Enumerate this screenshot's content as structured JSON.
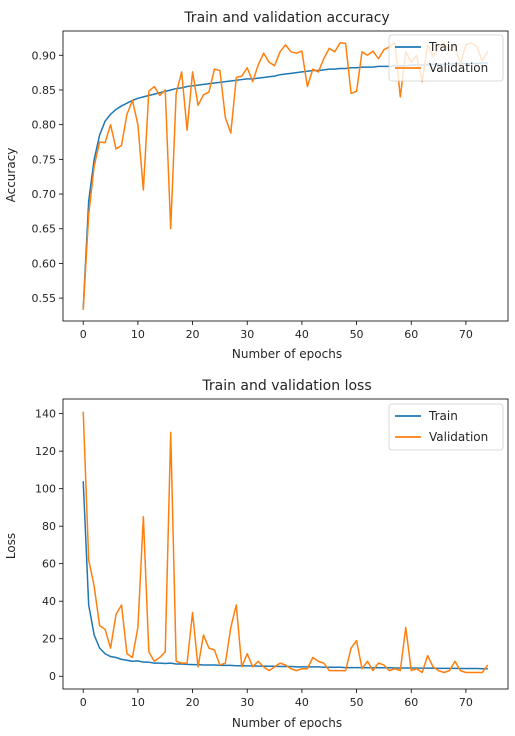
{
  "chart_data": [
    {
      "type": "line",
      "title": "Train and validation accuracy",
      "xlabel": "Number of epochs",
      "ylabel": "Accuracy",
      "xlim": [
        -3.7,
        77.7
      ],
      "ylim": [
        0.517,
        0.935
      ],
      "xticks": [
        0,
        10,
        20,
        30,
        40,
        50,
        60,
        70
      ],
      "yticks": [
        0.55,
        0.6,
        0.65,
        0.7,
        0.75,
        0.8,
        0.85,
        0.9
      ],
      "ytick_format": 2,
      "legend_position": "top-right",
      "grid": false,
      "x": [
        0,
        1,
        2,
        3,
        4,
        5,
        6,
        7,
        8,
        9,
        10,
        11,
        12,
        13,
        14,
        15,
        16,
        17,
        18,
        19,
        20,
        21,
        22,
        23,
        24,
        25,
        26,
        27,
        28,
        29,
        30,
        31,
        32,
        33,
        34,
        35,
        36,
        37,
        38,
        39,
        40,
        41,
        42,
        43,
        44,
        45,
        46,
        47,
        48,
        49,
        50,
        51,
        52,
        53,
        54,
        55,
        56,
        57,
        58,
        59,
        60,
        61,
        62,
        63,
        64,
        65,
        66,
        67,
        68,
        69,
        70,
        71,
        72,
        73,
        74
      ],
      "series": [
        {
          "name": "Train",
          "color": "#1f77b4",
          "values": [
            0.535,
            0.69,
            0.75,
            0.785,
            0.805,
            0.815,
            0.822,
            0.827,
            0.831,
            0.835,
            0.838,
            0.84,
            0.842,
            0.844,
            0.846,
            0.848,
            0.85,
            0.852,
            0.853,
            0.855,
            0.856,
            0.857,
            0.858,
            0.859,
            0.86,
            0.861,
            0.862,
            0.863,
            0.864,
            0.865,
            0.866,
            0.866,
            0.867,
            0.868,
            0.869,
            0.87,
            0.872,
            0.873,
            0.874,
            0.875,
            0.876,
            0.877,
            0.878,
            0.878,
            0.879,
            0.88,
            0.88,
            0.881,
            0.881,
            0.882,
            0.882,
            0.883,
            0.883,
            0.883,
            0.884,
            0.884,
            0.884,
            0.885,
            0.885,
            0.885,
            0.886,
            0.886,
            0.886,
            0.886,
            0.887,
            0.887,
            0.887,
            0.887,
            0.888,
            0.888,
            0.888,
            0.888,
            0.888,
            0.889,
            0.889
          ]
        },
        {
          "name": "Validation",
          "color": "#ff7f0e",
          "values": [
            0.533,
            0.67,
            0.74,
            0.775,
            0.774,
            0.8,
            0.765,
            0.77,
            0.815,
            0.835,
            0.8,
            0.706,
            0.848,
            0.855,
            0.842,
            0.85,
            0.65,
            0.845,
            0.876,
            0.792,
            0.876,
            0.828,
            0.843,
            0.847,
            0.88,
            0.878,
            0.81,
            0.788,
            0.868,
            0.87,
            0.882,
            0.862,
            0.886,
            0.903,
            0.89,
            0.885,
            0.905,
            0.915,
            0.905,
            0.903,
            0.906,
            0.855,
            0.88,
            0.876,
            0.895,
            0.91,
            0.905,
            0.918,
            0.917,
            0.845,
            0.848,
            0.905,
            0.9,
            0.906,
            0.895,
            0.908,
            0.912,
            0.918,
            0.84,
            0.905,
            0.89,
            0.9,
            0.862,
            0.915,
            0.898,
            0.912,
            0.918,
            0.906,
            0.915,
            0.887,
            0.915,
            0.918,
            0.912,
            0.892,
            0.906
          ]
        }
      ]
    },
    {
      "type": "line",
      "title": "Train and validation loss",
      "xlabel": "Number of epochs",
      "ylabel": "Loss",
      "xlim": [
        -3.7,
        77.7
      ],
      "ylim": [
        -6.8,
        147.8
      ],
      "xticks": [
        0,
        10,
        20,
        30,
        40,
        50,
        60,
        70
      ],
      "yticks": [
        0,
        20,
        40,
        60,
        80,
        100,
        120,
        140
      ],
      "ytick_format": 0,
      "legend_position": "top-right",
      "grid": false,
      "x": [
        0,
        1,
        2,
        3,
        4,
        5,
        6,
        7,
        8,
        9,
        10,
        11,
        12,
        13,
        14,
        15,
        16,
        17,
        18,
        19,
        20,
        21,
        22,
        23,
        24,
        25,
        26,
        27,
        28,
        29,
        30,
        31,
        32,
        33,
        34,
        35,
        36,
        37,
        38,
        39,
        40,
        41,
        42,
        43,
        44,
        45,
        46,
        47,
        48,
        49,
        50,
        51,
        52,
        53,
        54,
        55,
        56,
        57,
        58,
        59,
        60,
        61,
        62,
        63,
        64,
        65,
        66,
        67,
        68,
        69,
        70,
        71,
        72,
        73,
        74
      ],
      "series": [
        {
          "name": "Train",
          "color": "#1f77b4",
          "values": [
            104,
            38,
            22,
            15,
            12,
            10.5,
            10,
            9,
            8.5,
            8,
            8.2,
            7.5,
            7.5,
            7,
            7,
            6.8,
            7,
            6.5,
            6.5,
            6.3,
            6.2,
            6.2,
            6,
            6,
            6,
            5.8,
            5.8,
            5.8,
            5.6,
            5.6,
            5.5,
            5.5,
            5.4,
            5.4,
            5.3,
            5.3,
            5.2,
            5.2,
            5.2,
            5,
            5,
            5,
            5,
            5,
            4.8,
            4.8,
            4.8,
            4.8,
            4.6,
            4.6,
            4.6,
            4.6,
            4.5,
            4.5,
            4.5,
            4.5,
            4.5,
            4.4,
            4.4,
            4.4,
            4.4,
            4.3,
            4.3,
            4.3,
            4.3,
            4.2,
            4.2,
            4.2,
            4.2,
            4.1,
            4.1,
            4.1,
            4.1,
            4,
            4
          ]
        },
        {
          "name": "Validation",
          "color": "#ff7f0e",
          "values": [
            141,
            62,
            48,
            27,
            25,
            15,
            33,
            38,
            12,
            10,
            26,
            85,
            13,
            8,
            10,
            13,
            130,
            8,
            7,
            7,
            34,
            5,
            22,
            15,
            14,
            6,
            7,
            26,
            38,
            5,
            12,
            5,
            8,
            5,
            3,
            5,
            7,
            6,
            4,
            3,
            4,
            4,
            10,
            8,
            7,
            3,
            3,
            3,
            3,
            15,
            19,
            4,
            8,
            3,
            7,
            6,
            3,
            4,
            3,
            26,
            3,
            4,
            2,
            11,
            5,
            3,
            2,
            3,
            8,
            3,
            2,
            2,
            2,
            2,
            6
          ]
        }
      ]
    }
  ]
}
